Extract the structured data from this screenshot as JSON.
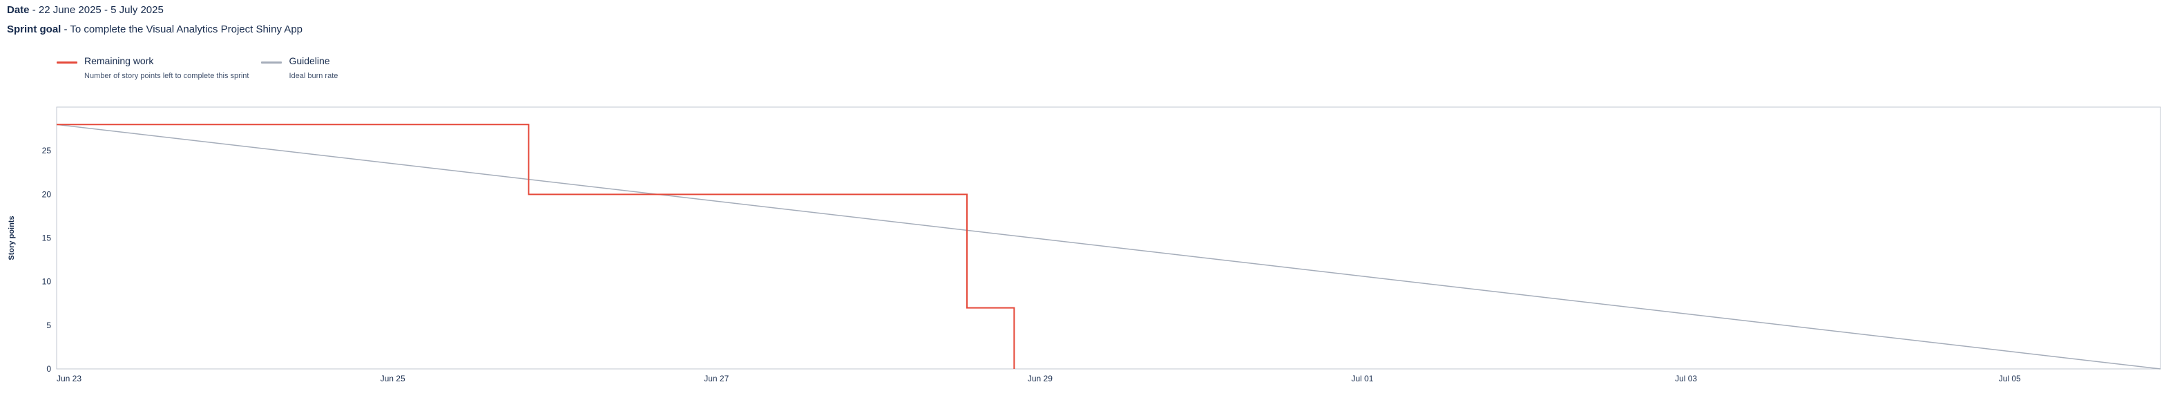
{
  "header": {
    "date_label": "Date",
    "date_value": "22 June 2025 - 5 July 2025",
    "goal_label": "Sprint goal",
    "goal_value": "To complete the Visual Analytics Project Shiny App"
  },
  "legend": [
    {
      "name": "Remaining work",
      "description": "Number of story points left to complete this sprint",
      "color": "#e5493a"
    },
    {
      "name": "Guideline",
      "description": "Ideal burn rate",
      "color": "#a5adba"
    }
  ],
  "chart_data": {
    "type": "line",
    "ylabel": "Story points",
    "xlabel": "",
    "ylim": [
      0,
      30
    ],
    "yticks": [
      0,
      5,
      10,
      15,
      20,
      25
    ],
    "xlim": [
      "2025-06-23",
      "2025-07-06"
    ],
    "xticks": [
      {
        "date": "2025-06-23",
        "label": "Jun 23"
      },
      {
        "date": "2025-06-25",
        "label": "Jun 25"
      },
      {
        "date": "2025-06-27",
        "label": "Jun 27"
      },
      {
        "date": "2025-06-29",
        "label": "Jun 29"
      },
      {
        "date": "2025-07-01",
        "label": "Jul 01"
      },
      {
        "date": "2025-07-03",
        "label": "Jul 03"
      },
      {
        "date": "2025-07-05",
        "label": "Jul 05"
      }
    ],
    "series": [
      {
        "name": "Remaining work",
        "step": true,
        "points": [
          {
            "x": "2025-06-23",
            "y": 28
          },
          {
            "x": "2025-06-25T22:00",
            "y": 20
          },
          {
            "x": "2025-06-28T15:00",
            "y": 7
          },
          {
            "x": "2025-06-28T22:00",
            "y": 0
          }
        ]
      },
      {
        "name": "Guideline",
        "step": false,
        "points": [
          {
            "x": "2025-06-23",
            "y": 28
          },
          {
            "x": "2025-07-06",
            "y": 0
          }
        ]
      }
    ],
    "grid": false,
    "legend_position": "top-left"
  }
}
